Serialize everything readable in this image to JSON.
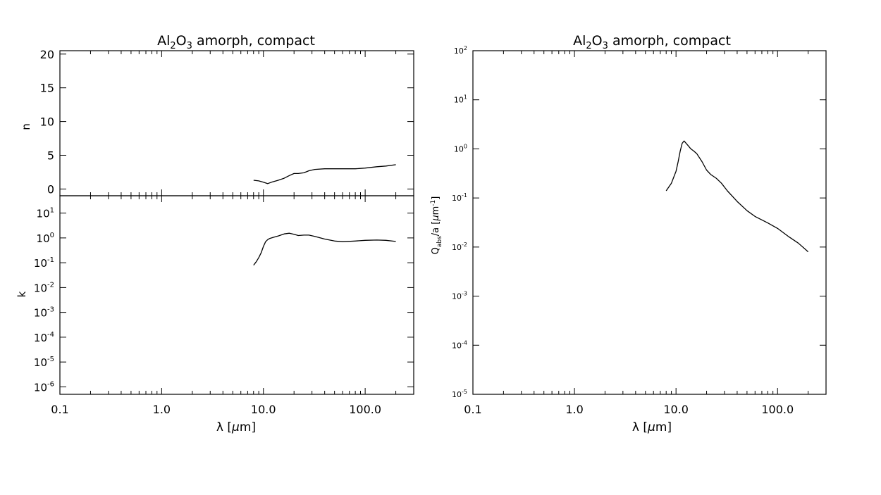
{
  "chart_data": [
    {
      "type": "line",
      "title_parts": [
        "Al",
        "2",
        "O",
        "3",
        " amorph, compact"
      ],
      "xlabel_parts": [
        "λ [",
        "μ",
        "m]"
      ],
      "ylabel": "n",
      "x_scale": "log",
      "y_scale": "linear",
      "xlim": [
        0.1,
        300
      ],
      "ylim": [
        -1,
        20.5
      ],
      "x_ticks": [
        0.1,
        1.0,
        10.0,
        100.0
      ],
      "y_ticks": [
        0,
        5,
        10,
        15,
        20
      ],
      "y_tick_labels": [
        "0",
        "5",
        "10",
        "15",
        "20"
      ],
      "x": [
        8,
        9,
        10,
        11,
        12,
        14,
        16,
        18,
        20,
        22,
        25,
        28,
        32,
        40,
        50,
        60,
        80,
        100,
        130,
        160,
        200
      ],
      "values": [
        1.3,
        1.2,
        1.0,
        0.8,
        1.0,
        1.3,
        1.6,
        2.0,
        2.3,
        2.3,
        2.4,
        2.7,
        2.9,
        3.0,
        3.0,
        3.0,
        3.0,
        3.1,
        3.3,
        3.4,
        3.6
      ]
    },
    {
      "type": "line",
      "ylabel": "k",
      "x_scale": "log",
      "y_scale": "log",
      "xlim": [
        0.1,
        300
      ],
      "ylim": [
        5e-07,
        50
      ],
      "x_ticks": [
        0.1,
        1.0,
        10.0,
        100.0
      ],
      "x_tick_labels": [
        "0.1",
        "1.0",
        "10.0",
        "100.0"
      ],
      "y_tick_exponents": [
        "-6",
        "-5",
        "-4",
        "-3",
        "-2",
        "-1",
        "0",
        "1"
      ],
      "x": [
        8,
        8.5,
        9,
        9.5,
        10,
        10.5,
        11,
        11.5,
        12,
        13,
        14,
        16,
        18,
        20,
        22,
        25,
        28,
        32,
        40,
        50,
        60,
        80,
        100,
        130,
        160,
        200
      ],
      "values": [
        0.08,
        0.11,
        0.16,
        0.25,
        0.45,
        0.7,
        0.85,
        0.95,
        1.0,
        1.1,
        1.2,
        1.45,
        1.55,
        1.4,
        1.25,
        1.3,
        1.3,
        1.15,
        0.9,
        0.75,
        0.7,
        0.75,
        0.8,
        0.82,
        0.8,
        0.72
      ]
    },
    {
      "type": "line",
      "title_parts": [
        "Al",
        "2",
        "O",
        "3",
        " amorph, compact"
      ],
      "xlabel_parts": [
        "λ [",
        "μ",
        "m]"
      ],
      "ylabel_parts": [
        "Q",
        "abs",
        "/a [",
        "μ",
        "m",
        "-1",
        "]"
      ],
      "x_scale": "log",
      "y_scale": "log",
      "xlim": [
        0.1,
        300
      ],
      "ylim": [
        1e-05,
        100
      ],
      "x_ticks": [
        0.1,
        1.0,
        10.0,
        100.0
      ],
      "x_tick_labels": [
        "0.1",
        "1.0",
        "10.0",
        "100.0"
      ],
      "y_tick_exponents": [
        "-5",
        "-4",
        "-3",
        "-2",
        "-1",
        "0",
        "1",
        "2"
      ],
      "x": [
        8,
        9,
        10,
        10.5,
        11,
        11.5,
        12,
        13,
        14,
        15,
        16,
        18,
        20,
        22,
        25,
        28,
        32,
        40,
        50,
        60,
        80,
        100,
        130,
        160,
        200
      ],
      "values": [
        0.14,
        0.2,
        0.35,
        0.55,
        0.9,
        1.3,
        1.45,
        1.2,
        1.0,
        0.9,
        0.8,
        0.55,
        0.37,
        0.3,
        0.25,
        0.2,
        0.14,
        0.085,
        0.055,
        0.042,
        0.031,
        0.024,
        0.016,
        0.012,
        0.008
      ]
    }
  ]
}
